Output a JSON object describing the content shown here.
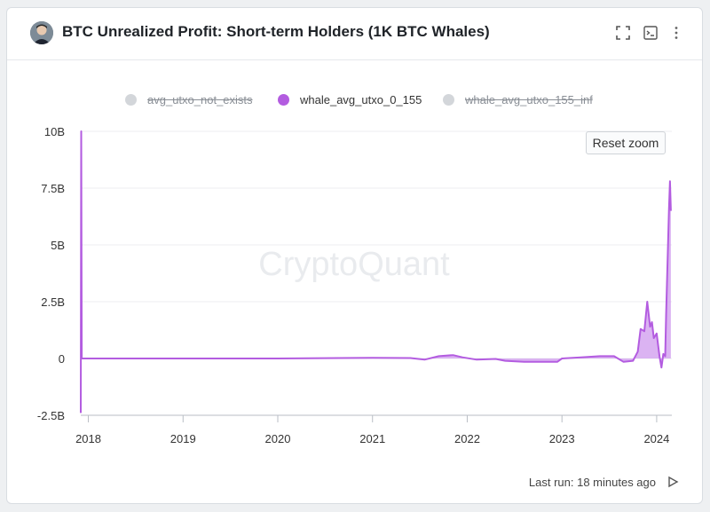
{
  "header": {
    "title": "BTC Unrealized Profit: Short-term Holders (1K BTC Whales)",
    "icons": [
      "avatar",
      "fullscreen-icon",
      "terminal-icon",
      "more-vertical-icon"
    ]
  },
  "watermark": "CryptoQuant",
  "reset_zoom_label": "Reset zoom",
  "footer": {
    "last_run": "Last run: 18 minutes ago"
  },
  "colors": {
    "accent": "#b35ce0",
    "fill": "#cf9aee",
    "legend_off": "#d3d6da"
  },
  "chart_data": {
    "type": "area",
    "title": "BTC Unrealized Profit: Short-term Holders (1K BTC Whales)",
    "ylim": [
      -2.5,
      10
    ],
    "y_unit": "B",
    "y_ticks": [
      {
        "value": 10,
        "label": "10B"
      },
      {
        "value": 7.5,
        "label": "7.5B"
      },
      {
        "value": 5,
        "label": "5B"
      },
      {
        "value": 2.5,
        "label": "2.5B"
      },
      {
        "value": 0,
        "label": "0"
      },
      {
        "value": -2.5,
        "label": "-2.5B"
      }
    ],
    "x_ticks": [
      "2018",
      "2019",
      "2020",
      "2021",
      "2022",
      "2023",
      "2024"
    ],
    "grid": true,
    "legend": [
      {
        "label": "avg_utxo_not_exists",
        "active": false
      },
      {
        "label": "whale_avg_utxo_0_155",
        "active": true
      },
      {
        "label": "whale_avg_utxo_155_inf",
        "active": false
      }
    ],
    "series": [
      {
        "name": "whale_avg_utxo_0_155",
        "points": [
          [
            2017.92,
            -2.4
          ],
          [
            2017.925,
            10
          ],
          [
            2017.93,
            0
          ],
          [
            2018.0,
            0
          ],
          [
            2019.0,
            0
          ],
          [
            2020.0,
            0
          ],
          [
            2021.0,
            0.03
          ],
          [
            2021.4,
            0.02
          ],
          [
            2021.55,
            -0.05
          ],
          [
            2021.7,
            0.1
          ],
          [
            2021.85,
            0.15
          ],
          [
            2021.95,
            0.05
          ],
          [
            2022.1,
            -0.05
          ],
          [
            2022.3,
            -0.02
          ],
          [
            2022.4,
            -0.1
          ],
          [
            2022.6,
            -0.15
          ],
          [
            2022.8,
            -0.15
          ],
          [
            2022.95,
            -0.15
          ],
          [
            2023.0,
            0.0
          ],
          [
            2023.2,
            0.05
          ],
          [
            2023.4,
            0.1
          ],
          [
            2023.55,
            0.1
          ],
          [
            2023.65,
            -0.15
          ],
          [
            2023.75,
            -0.1
          ],
          [
            2023.8,
            0.3
          ],
          [
            2023.83,
            1.3
          ],
          [
            2023.87,
            1.2
          ],
          [
            2023.9,
            2.5
          ],
          [
            2023.93,
            1.4
          ],
          [
            2023.95,
            1.6
          ],
          [
            2023.97,
            0.9
          ],
          [
            2024.0,
            1.1
          ],
          [
            2024.03,
            0.1
          ],
          [
            2024.05,
            -0.4
          ],
          [
            2024.07,
            0.2
          ],
          [
            2024.09,
            0.1
          ],
          [
            2024.1,
            2.0
          ],
          [
            2024.12,
            5.0
          ],
          [
            2024.13,
            6.6
          ],
          [
            2024.14,
            7.8
          ],
          [
            2024.15,
            6.5
          ]
        ]
      }
    ]
  }
}
